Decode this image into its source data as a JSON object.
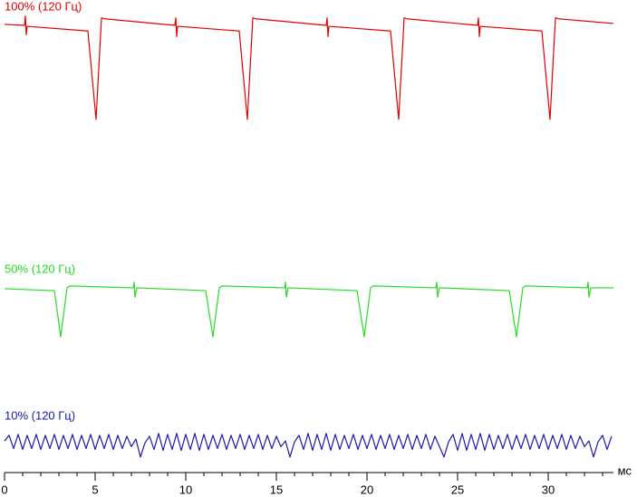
{
  "chart_data": {
    "type": "line",
    "xlabel": "мс",
    "xlim": [
      0,
      33.6
    ],
    "xticks": [
      0,
      5,
      10,
      15,
      20,
      25,
      30
    ],
    "xminorticks": [
      1,
      2,
      3,
      4,
      6,
      7,
      8,
      9,
      11,
      12,
      13,
      14,
      16,
      17,
      18,
      19,
      21,
      22,
      23,
      24,
      26,
      27,
      28,
      29,
      31,
      32,
      33
    ],
    "series": [
      {
        "name": "100% (120 Гц)",
        "color": "#e00000",
        "x": [
          0,
          1.1,
          1.15,
          1.2,
          1.25,
          4.6,
          5.05,
          5.35,
          5.5,
          9.4,
          9.45,
          9.5,
          9.55,
          12.95,
          13.4,
          13.7,
          13.85,
          17.75,
          17.8,
          17.85,
          17.9,
          21.3,
          21.75,
          22.05,
          22.2,
          26.1,
          26.15,
          26.2,
          26.25,
          29.65,
          30.1,
          30.4,
          30.55,
          33.6
        ],
        "values": [
          101,
          100,
          110,
          90,
          99,
          94,
          0,
          108,
          107,
          100,
          108,
          88,
          99,
          94,
          0,
          108,
          107,
          100,
          108,
          88,
          99,
          94,
          0,
          108,
          107,
          100,
          108,
          88,
          99,
          94,
          0,
          108,
          107,
          102
        ]
      },
      {
        "name": "50% (120 Гц)",
        "color": "#22dd22",
        "x": [
          0,
          2.75,
          3.1,
          3.45,
          3.6,
          7.1,
          7.15,
          7.2,
          7.3,
          11.1,
          11.5,
          11.85,
          12.0,
          15.45,
          15.5,
          15.55,
          15.65,
          19.45,
          19.85,
          20.2,
          20.35,
          23.8,
          23.85,
          23.9,
          24.0,
          27.85,
          28.25,
          28.6,
          28.75,
          32.15,
          32.2,
          32.25,
          32.35,
          33.6
        ],
        "values": [
          51,
          49,
          0,
          52,
          54,
          52,
          58,
          42,
          52,
          49,
          0,
          52,
          54,
          52,
          58,
          42,
          52,
          49,
          0,
          52,
          54,
          52,
          58,
          42,
          52,
          49,
          0,
          52,
          54,
          52,
          58,
          42,
          52,
          52
        ]
      },
      {
        "name": "10% (120 Гц)",
        "color": "#1a1aaa",
        "x": [
          0,
          0.25,
          0.5,
          0.75,
          1,
          1.25,
          1.5,
          1.75,
          2,
          2.25,
          2.5,
          2.75,
          3,
          3.25,
          3.5,
          3.75,
          4,
          4.25,
          4.5,
          4.75,
          5,
          5.25,
          5.5,
          5.75,
          6,
          6.25,
          6.5,
          6.75,
          7,
          7.25,
          7.5,
          7.75,
          8,
          8.25,
          8.5,
          8.75,
          9,
          9.25,
          9.5,
          9.75,
          10,
          10.25,
          10.5,
          10.75,
          11,
          11.25,
          11.5,
          11.75,
          12,
          12.25,
          12.5,
          12.75,
          13,
          13.25,
          13.5,
          13.75,
          14,
          14.25,
          14.5,
          14.75,
          15,
          15.25,
          15.5,
          15.75,
          16,
          16.25,
          16.5,
          16.75,
          17,
          17.25,
          17.5,
          17.75,
          18,
          18.25,
          18.5,
          18.75,
          19,
          19.25,
          19.5,
          19.75,
          20,
          20.25,
          20.5,
          20.75,
          21,
          21.25,
          21.5,
          21.75,
          22,
          22.25,
          22.5,
          22.75,
          23,
          23.25,
          23.5,
          23.75,
          24,
          24.25,
          24.5,
          24.75,
          25,
          25.25,
          25.5,
          25.75,
          26,
          26.25,
          26.5,
          26.75,
          27,
          27.25,
          27.5,
          27.75,
          28,
          28.25,
          28.5,
          28.75,
          29,
          29.25,
          29.5,
          29.75,
          30,
          30.25,
          30.5,
          30.75,
          31,
          31.25,
          31.5,
          31.75,
          32,
          32.25,
          32.5,
          32.75,
          33,
          33.25,
          33.5
        ],
        "values": [
          22,
          28,
          14,
          29,
          13,
          28,
          14,
          29,
          13,
          28,
          14,
          29,
          13,
          28,
          14,
          29,
          13,
          28,
          14,
          29,
          13,
          28,
          14,
          29,
          13,
          28,
          14,
          27,
          16,
          24,
          5,
          20,
          27,
          13,
          30,
          12,
          29,
          13,
          30,
          12,
          29,
          13,
          30,
          12,
          29,
          13,
          28,
          14,
          29,
          13,
          28,
          14,
          29,
          13,
          28,
          14,
          29,
          13,
          28,
          14,
          27,
          16,
          22,
          5,
          21,
          28,
          13,
          30,
          12,
          29,
          13,
          30,
          12,
          29,
          13,
          28,
          14,
          29,
          13,
          28,
          14,
          29,
          13,
          28,
          14,
          29,
          13,
          28,
          14,
          29,
          13,
          28,
          14,
          29,
          13,
          27,
          16,
          5,
          21,
          29,
          12,
          30,
          12,
          29,
          13,
          30,
          12,
          29,
          13,
          28,
          14,
          29,
          13,
          28,
          14,
          29,
          13,
          28,
          14,
          29,
          13,
          28,
          14,
          29,
          13,
          28,
          14,
          27,
          16,
          22,
          5,
          21,
          28,
          13,
          27
        ]
      }
    ]
  }
}
